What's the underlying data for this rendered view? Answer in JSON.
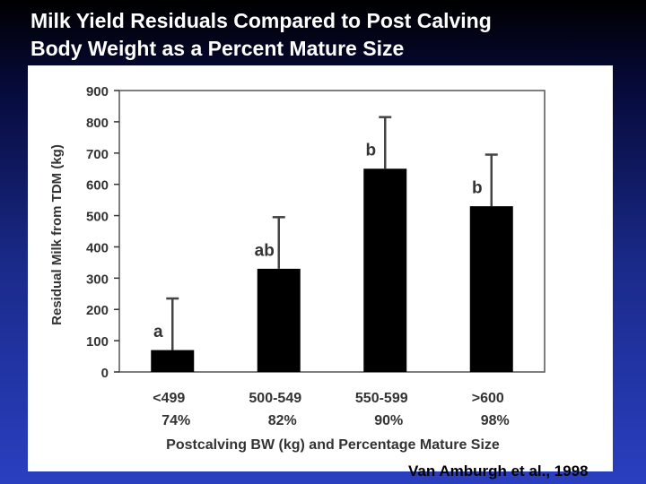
{
  "slide": {
    "title_line1": "Milk Yield Residuals Compared to Post Calving",
    "title_line2": "Body Weight as a Percent Mature Size",
    "citation": "Van Amburgh et al., 1998"
  },
  "colors": {
    "title_text": "#ffffff",
    "bar": "#000000",
    "panel": "#ffffff"
  },
  "chart_data": {
    "type": "bar",
    "title": "",
    "xlabel": "Postcalving BW (kg) and Percentage Mature Size",
    "ylabel": "Residual Milk from TDM (kg)",
    "ylim": [
      0,
      900
    ],
    "yticks": [
      "0",
      "100",
      "200",
      "300",
      "400",
      "500",
      "600",
      "700",
      "800",
      "900"
    ],
    "categories": [
      "<499",
      "500-549",
      "550-599",
      ">600"
    ],
    "percentages": [
      "74%",
      "82%",
      "90%",
      "98%"
    ],
    "values": [
      70,
      330,
      650,
      530
    ],
    "error_upper": [
      235,
      495,
      815,
      695
    ],
    "group_labels": [
      "a",
      "ab",
      "b",
      "b"
    ],
    "grid": false,
    "legend": "none"
  }
}
